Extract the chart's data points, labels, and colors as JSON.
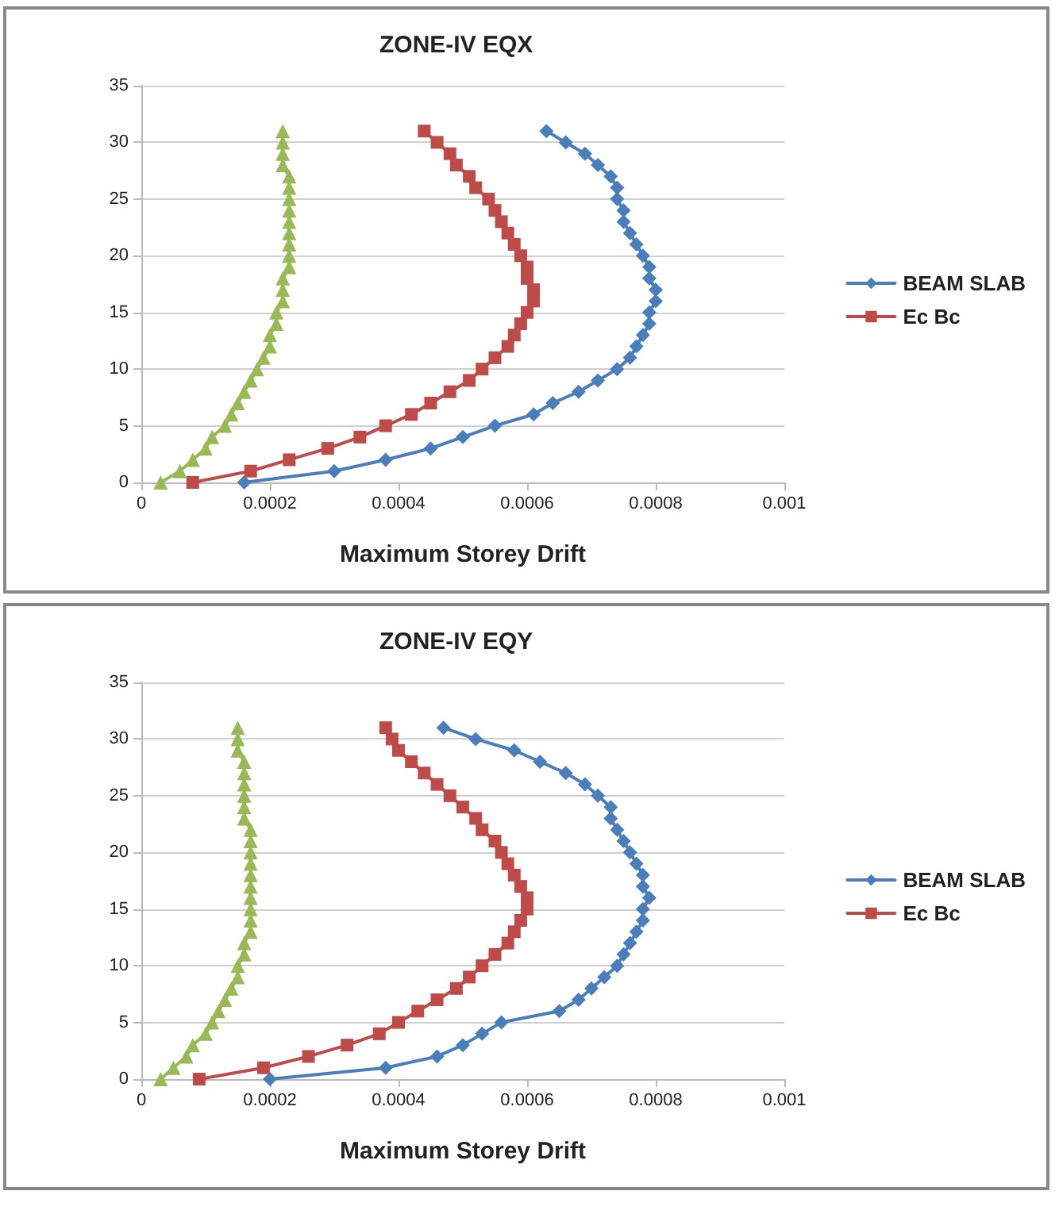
{
  "chart_data": [
    {
      "type": "line",
      "title": "ZONE-IV EQX",
      "xlabel": "Maximum Storey Drift",
      "xlim": [
        0,
        0.001
      ],
      "xticks": [
        0,
        0.0002,
        0.0004,
        0.0006,
        0.0008,
        0.001
      ],
      "ylim": [
        0,
        35
      ],
      "yticks": [
        0,
        5,
        10,
        15,
        20,
        25,
        30,
        35
      ],
      "grid": "y",
      "legend": "right",
      "series": [
        {
          "name": "BEAM SLAB",
          "color": "#4a7ebb",
          "marker": "diamond",
          "x": [
            0.00016,
            0.0003,
            0.00038,
            0.00045,
            0.0005,
            0.00055,
            0.00061,
            0.00064,
            0.00068,
            0.00071,
            0.00074,
            0.00076,
            0.00077,
            0.00078,
            0.00079,
            0.00079,
            0.0008,
            0.0008,
            0.00079,
            0.00079,
            0.00078,
            0.00077,
            0.00076,
            0.00075,
            0.00075,
            0.00074,
            0.00074,
            0.00073,
            0.00071,
            0.00069,
            0.00066,
            0.00063
          ],
          "values": [
            0,
            1,
            2,
            3,
            4,
            5,
            6,
            7,
            8,
            9,
            10,
            11,
            12,
            13,
            14,
            15,
            16,
            17,
            18,
            19,
            20,
            21,
            22,
            23,
            24,
            25,
            26,
            27,
            28,
            29,
            30,
            31
          ]
        },
        {
          "name": "Ec Bc",
          "color": "#be4b48",
          "marker": "square",
          "x": [
            8e-05,
            0.00017,
            0.00023,
            0.00029,
            0.00034,
            0.00038,
            0.00042,
            0.00045,
            0.00048,
            0.00051,
            0.00053,
            0.00055,
            0.00057,
            0.00058,
            0.00059,
            0.0006,
            0.00061,
            0.00061,
            0.0006,
            0.0006,
            0.00059,
            0.00058,
            0.00057,
            0.00056,
            0.00055,
            0.00054,
            0.00052,
            0.00051,
            0.00049,
            0.00048,
            0.00046,
            0.00044
          ],
          "values": [
            0,
            1,
            2,
            3,
            4,
            5,
            6,
            7,
            8,
            9,
            10,
            11,
            12,
            13,
            14,
            15,
            16,
            17,
            18,
            19,
            20,
            21,
            22,
            23,
            24,
            25,
            26,
            27,
            28,
            29,
            30,
            31
          ]
        },
        {
          "color": "#98b954",
          "marker": "triangle",
          "x": [
            3e-05,
            6e-05,
            8e-05,
            0.0001,
            0.00011,
            0.00013,
            0.00014,
            0.00015,
            0.00016,
            0.00017,
            0.00018,
            0.00019,
            0.0002,
            0.0002,
            0.00021,
            0.00021,
            0.00022,
            0.00022,
            0.00022,
            0.00023,
            0.00023,
            0.00023,
            0.00023,
            0.00023,
            0.00023,
            0.00023,
            0.00023,
            0.00023,
            0.00022,
            0.00022,
            0.00022,
            0.00022
          ],
          "values": [
            0,
            1,
            2,
            3,
            4,
            5,
            6,
            7,
            8,
            9,
            10,
            11,
            12,
            13,
            14,
            15,
            16,
            17,
            18,
            19,
            20,
            21,
            22,
            23,
            24,
            25,
            26,
            27,
            28,
            29,
            30,
            31
          ]
        }
      ]
    },
    {
      "type": "line",
      "title": "ZONE-IV EQY",
      "xlabel": "Maximum Storey Drift",
      "xlim": [
        0,
        0.001
      ],
      "xticks": [
        0,
        0.0002,
        0.0004,
        0.0006,
        0.0008,
        0.001
      ],
      "ylim": [
        0,
        35
      ],
      "yticks": [
        0,
        5,
        10,
        15,
        20,
        25,
        30,
        35
      ],
      "grid": "y",
      "legend": "right",
      "series": [
        {
          "name": "BEAM SLAB",
          "color": "#4a7ebb",
          "marker": "diamond",
          "x": [
            0.0002,
            0.00038,
            0.00046,
            0.0005,
            0.00053,
            0.00056,
            0.00065,
            0.00068,
            0.0007,
            0.00072,
            0.00074,
            0.00075,
            0.00076,
            0.00077,
            0.00078,
            0.00078,
            0.00079,
            0.00078,
            0.00078,
            0.00077,
            0.00076,
            0.00075,
            0.00074,
            0.00073,
            0.00073,
            0.00071,
            0.00069,
            0.00066,
            0.00062,
            0.00058,
            0.00052,
            0.00047
          ],
          "values": [
            0,
            1,
            2,
            3,
            4,
            5,
            6,
            7,
            8,
            9,
            10,
            11,
            12,
            13,
            14,
            15,
            16,
            17,
            18,
            19,
            20,
            21,
            22,
            23,
            24,
            25,
            26,
            27,
            28,
            29,
            30,
            31
          ]
        },
        {
          "name": "Ec Bc",
          "color": "#be4b48",
          "marker": "square",
          "x": [
            9e-05,
            0.00019,
            0.00026,
            0.00032,
            0.00037,
            0.0004,
            0.00043,
            0.00046,
            0.00049,
            0.00051,
            0.00053,
            0.00055,
            0.00057,
            0.00058,
            0.00059,
            0.0006,
            0.0006,
            0.00059,
            0.00058,
            0.00057,
            0.00056,
            0.00055,
            0.00053,
            0.00052,
            0.0005,
            0.00048,
            0.00046,
            0.00044,
            0.00042,
            0.0004,
            0.00039,
            0.00038
          ],
          "values": [
            0,
            1,
            2,
            3,
            4,
            5,
            6,
            7,
            8,
            9,
            10,
            11,
            12,
            13,
            14,
            15,
            16,
            17,
            18,
            19,
            20,
            21,
            22,
            23,
            24,
            25,
            26,
            27,
            28,
            29,
            30,
            31
          ]
        },
        {
          "color": "#98b954",
          "marker": "triangle",
          "x": [
            3e-05,
            5e-05,
            7e-05,
            8e-05,
            0.0001,
            0.00011,
            0.00012,
            0.00013,
            0.00014,
            0.00015,
            0.00015,
            0.00016,
            0.00016,
            0.00017,
            0.00017,
            0.00017,
            0.00017,
            0.00017,
            0.00017,
            0.00017,
            0.00017,
            0.00017,
            0.00017,
            0.00016,
            0.00016,
            0.00016,
            0.00016,
            0.00016,
            0.00016,
            0.00015,
            0.00015,
            0.00015
          ],
          "values": [
            0,
            1,
            2,
            3,
            4,
            5,
            6,
            7,
            8,
            9,
            10,
            11,
            12,
            13,
            14,
            15,
            16,
            17,
            18,
            19,
            20,
            21,
            22,
            23,
            24,
            25,
            26,
            27,
            28,
            29,
            30,
            31
          ]
        }
      ]
    }
  ]
}
